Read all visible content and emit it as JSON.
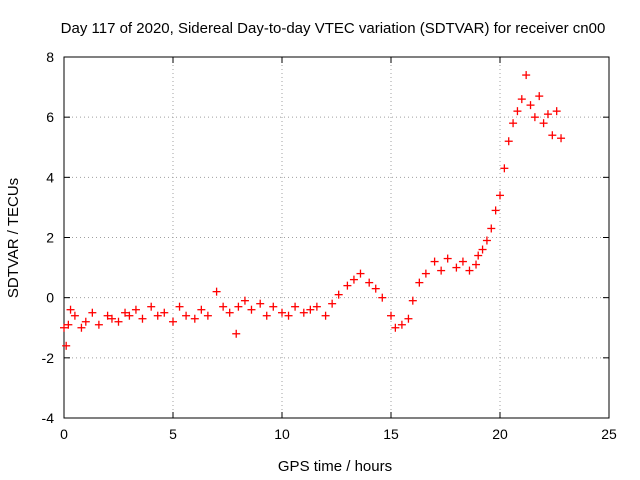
{
  "chart_data": {
    "type": "scatter",
    "title": "Day 117 of 2020, Sidereal Day-to-day VTEC variation (SDTVAR) for receiver cn00",
    "xlabel": "GPS time / hours",
    "ylabel": "SDTVAR / TECUs",
    "xlim": [
      0,
      25
    ],
    "ylim": [
      -4,
      8
    ],
    "xticks": [
      0,
      5,
      10,
      15,
      20,
      25
    ],
    "yticks": [
      -4,
      -2,
      0,
      2,
      4,
      6,
      8
    ],
    "grid": true,
    "marker": "+",
    "color": "#ff0000",
    "series": [
      {
        "name": "SDTVAR",
        "x": [
          0.0,
          0.1,
          0.2,
          0.3,
          0.5,
          0.8,
          1.0,
          1.3,
          1.6,
          2.0,
          2.2,
          2.5,
          2.8,
          3.0,
          3.3,
          3.6,
          4.0,
          4.3,
          4.6,
          5.0,
          5.3,
          5.6,
          6.0,
          6.3,
          6.6,
          7.0,
          7.3,
          7.6,
          7.9,
          8.0,
          8.3,
          8.6,
          9.0,
          9.3,
          9.6,
          10.0,
          10.3,
          10.6,
          11.0,
          11.3,
          11.6,
          12.0,
          12.3,
          12.6,
          13.0,
          13.3,
          13.6,
          14.0,
          14.3,
          14.6,
          15.0,
          15.2,
          15.5,
          15.8,
          16.0,
          16.3,
          16.6,
          17.0,
          17.3,
          17.6,
          18.0,
          18.3,
          18.6,
          18.9,
          19.0,
          19.2,
          19.4,
          19.6,
          19.8,
          20.0,
          20.2,
          20.4,
          20.6,
          20.8,
          21.0,
          21.2,
          21.4,
          21.6,
          21.8,
          22.0,
          22.2,
          22.4,
          22.6,
          22.8
        ],
        "y": [
          -1.0,
          -1.6,
          -0.9,
          -0.4,
          -0.6,
          -1.0,
          -0.8,
          -0.5,
          -0.9,
          -0.6,
          -0.7,
          -0.8,
          -0.5,
          -0.6,
          -0.4,
          -0.7,
          -0.3,
          -0.6,
          -0.5,
          -0.8,
          -0.3,
          -0.6,
          -0.7,
          -0.4,
          -0.6,
          0.2,
          -0.3,
          -0.5,
          -1.2,
          -0.3,
          -0.1,
          -0.4,
          -0.2,
          -0.6,
          -0.3,
          -0.5,
          -0.6,
          -0.3,
          -0.5,
          -0.4,
          -0.3,
          -0.6,
          -0.2,
          0.1,
          0.4,
          0.6,
          0.8,
          0.5,
          0.3,
          0.0,
          -0.6,
          -1.0,
          -0.9,
          -0.7,
          -0.1,
          0.5,
          0.8,
          1.2,
          0.9,
          1.3,
          1.0,
          1.2,
          0.9,
          1.1,
          1.4,
          1.6,
          1.9,
          2.3,
          2.9,
          3.4,
          4.3,
          5.2,
          5.8,
          6.2,
          6.6,
          7.4,
          6.4,
          6.0,
          6.7,
          5.8,
          6.1,
          5.4,
          6.2,
          5.3
        ]
      }
    ]
  }
}
